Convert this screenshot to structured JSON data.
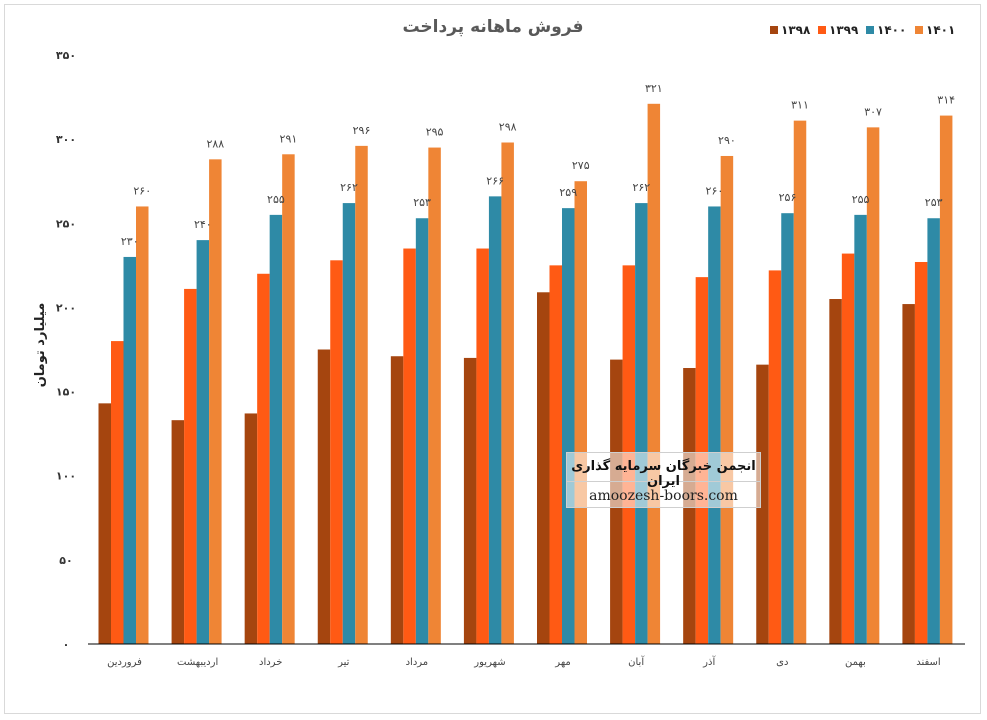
{
  "chart_data": {
    "type": "bar",
    "title": "فروش ماهانه پرداخت",
    "ylabel": "میلیارد تومان",
    "xlabel": "",
    "ylim": [
      0,
      350
    ],
    "yticks": [
      0,
      50,
      100,
      150,
      200,
      250,
      300,
      350
    ],
    "ytick_labels": [
      "۰",
      "۵۰",
      "۱۰۰",
      "۱۵۰",
      "۲۰۰",
      "۲۵۰",
      "۳۰۰",
      "۳۵۰"
    ],
    "grid": false,
    "legend_position": "top-right",
    "categories": [
      "فروردین",
      "اردیبهشت",
      "خرداد",
      "تیر",
      "مرداد",
      "شهریور",
      "مهر",
      "آبان",
      "آذر",
      "دی",
      "بهمن",
      "اسفند"
    ],
    "series": [
      {
        "name": "۱۳۹۸",
        "color": "#a5450f",
        "values": [
          143,
          133,
          137,
          175,
          171,
          170,
          209,
          169,
          164,
          166,
          205,
          202
        ],
        "labels": []
      },
      {
        "name": "۱۳۹۹",
        "color": "#ff5a14",
        "values": [
          180,
          211,
          220,
          228,
          235,
          235,
          225,
          225,
          218,
          222,
          232,
          227
        ],
        "labels": []
      },
      {
        "name": "۱۴۰۰",
        "color": "#2e8aa6",
        "values": [
          230,
          240,
          255,
          262,
          253,
          266,
          259,
          262,
          260,
          256,
          255,
          253
        ],
        "labels": [
          "۲۳۰",
          "۲۴۰",
          "۲۵۵",
          "۲۶۲",
          "۲۵۳",
          "۲۶۶",
          "۲۵۹",
          "۲۶۲",
          "۲۶۰",
          "۲۵۶",
          "۲۵۵",
          "۲۵۳"
        ]
      },
      {
        "name": "۱۴۰۱",
        "color": "#ef8535",
        "values": [
          260,
          288,
          291,
          296,
          295,
          298,
          275,
          321,
          290,
          311,
          307,
          314
        ],
        "labels": [
          "۲۶۰",
          "۲۸۸",
          "۲۹۱",
          "۲۹۶",
          "۲۹۵",
          "۲۹۸",
          "۲۷۵",
          "۳۲۱",
          "۲۹۰",
          "۳۱۱",
          "۳۰۷",
          "۳۱۴"
        ]
      }
    ]
  },
  "watermark": {
    "line1": "انجمن خبرگان سرمایه گذاری ایران",
    "line2": "amoozesh-boors.com"
  }
}
